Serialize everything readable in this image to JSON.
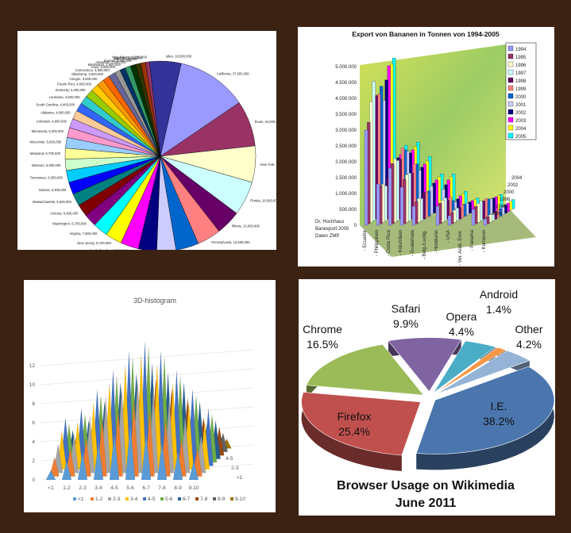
{
  "chart_data": [
    {
      "type": "pie",
      "title": "",
      "slices": [
        {
          "label": "California, 37,000,000",
          "value": 37000000,
          "color": "#9999ff"
        },
        {
          "label": "Texas, 24,000,000",
          "value": 24000000,
          "color": "#993366"
        },
        {
          "label": "New York, 19,000,000",
          "value": 19000000,
          "color": "#ffffcc"
        },
        {
          "label": "Florida, 18,000,000",
          "value": 18000000,
          "color": "#ccffff"
        },
        {
          "label": "Illinois, 13,000,000",
          "value": 13000000,
          "color": "#660066"
        },
        {
          "label": "Pennsylvania, 12,500,000",
          "value": 12500000,
          "color": "#ff8080"
        },
        {
          "label": "Ohio, 12,000,000",
          "value": 12000000,
          "color": "#0066cc"
        },
        {
          "label": "Michigan, 10,000,000",
          "value": 10000000,
          "color": "#ccccff"
        },
        {
          "label": "Georgia, 9,600,000",
          "value": 9600000,
          "color": "#000080"
        },
        {
          "label": "North Carolina, 9,500,000",
          "value": 9500000,
          "color": "#ff00ff"
        },
        {
          "label": "New Jersey, 8,700,000",
          "value": 8700000,
          "color": "#ffff00"
        },
        {
          "label": "Virginia, 7,800,000",
          "value": 7800000,
          "color": "#00ffff"
        },
        {
          "label": "Washington, 6,700,000",
          "value": 6700000,
          "color": "#800080"
        },
        {
          "label": "Arizona, 6,400,000",
          "value": 6400000,
          "color": "#800000"
        },
        {
          "label": "Massachusetts, 6,500,000",
          "value": 6500000,
          "color": "#008080"
        },
        {
          "label": "Indiana, 6,400,000",
          "value": 6400000,
          "color": "#0000ff"
        },
        {
          "label": "Tennessee, 6,300,000",
          "value": 6300000,
          "color": "#00ccff"
        },
        {
          "label": "Missouri, 5,900,000",
          "value": 5900000,
          "color": "#ccffcc"
        },
        {
          "label": "Maryland, 5,700,000",
          "value": 5700000,
          "color": "#ffff99"
        },
        {
          "label": "Wisconsin, 5,600,000",
          "value": 5600000,
          "color": "#99ccff"
        },
        {
          "label": "Minnesota, 5,200,000",
          "value": 5200000,
          "color": "#ff99cc"
        },
        {
          "label": "Colorado, 4,900,000",
          "value": 4900000,
          "color": "#cc99ff"
        },
        {
          "label": "Alabama, 4,600,000",
          "value": 4600000,
          "color": "#ffcc99"
        },
        {
          "label": "South Carolina, 4,400,000",
          "value": 4400000,
          "color": "#3366ff"
        },
        {
          "label": "Louisiana, 4,500,000",
          "value": 4500000,
          "color": "#33cccc"
        },
        {
          "label": "Kentucky, 4,300,000",
          "value": 4300000,
          "color": "#99cc00"
        },
        {
          "label": "Puerto Rico, 4,000,000",
          "value": 4000000,
          "color": "#ffcc00"
        },
        {
          "label": "Oregon, 3,800,000",
          "value": 3800000,
          "color": "#ff9900"
        },
        {
          "label": "Oklahoma, 3,600,000",
          "value": 3600000,
          "color": "#ff6600"
        },
        {
          "label": "Connecticut, 3,500,000",
          "value": 3500000,
          "color": "#666699"
        },
        {
          "label": "Iowa, 3,000,000",
          "value": 3000000,
          "color": "#969696"
        },
        {
          "label": "Mississippi, 2,900,000",
          "value": 2900000,
          "color": "#003366"
        },
        {
          "label": "Arkansas, 2,900,000",
          "value": 2900000,
          "color": "#339966"
        },
        {
          "label": "Kansas, 2,800,000",
          "value": 2800000,
          "color": "#003300"
        },
        {
          "label": "Utah, 2,700,000",
          "value": 2700000,
          "color": "#333300"
        },
        {
          "label": "Nevada, 2,600,000",
          "value": 2600000,
          "color": "#993300"
        },
        {
          "label": "New Mexico, 2,000,000",
          "value": 2000000,
          "color": "#993366"
        },
        {
          "label": "other, 16,500,000",
          "value": 16500000,
          "color": "#333399"
        }
      ]
    },
    {
      "type": "bar",
      "title": "Export von Bananen in Tonnen von 1994-2005",
      "categories": [
        "- Ecuador",
        "- Philippinen",
        "- Costa Rica",
        "- Kolumbien",
        "- Guatemala",
        "- Belg./Luxbg.",
        "- Honduras",
        "- USA",
        "- Ver. Arab. Emir.",
        "- Panama",
        "- Kamerun"
      ],
      "yticks": [
        "0",
        "500.000",
        "1.000.000",
        "1.500.000",
        "2.000.000",
        "2.500.000",
        "3.000.000",
        "3.500.000",
        "4.000.000",
        "4.500.000",
        "5.000.000"
      ],
      "ylim": [
        0,
        5000000
      ],
      "depth_labels": [
        "1994",
        "1996",
        "1998",
        "2000",
        "2002",
        "2004"
      ],
      "series": [
        {
          "name": "1994",
          "color": "#9999ff",
          "values": [
            3000000,
            1300000,
            1800000,
            1200000,
            600000,
            0,
            600000,
            300000,
            0,
            500000,
            200000
          ]
        },
        {
          "name": "1995",
          "color": "#993366",
          "values": [
            3200000,
            1200000,
            1900000,
            1400000,
            700000,
            0,
            650000,
            350000,
            0,
            550000,
            220000
          ]
        },
        {
          "name": "1996",
          "color": "#ffffcc",
          "values": [
            3800000,
            1200000,
            2000000,
            1500000,
            750000,
            0,
            700000,
            380000,
            0,
            600000,
            240000
          ]
        },
        {
          "name": "1997",
          "color": "#ccffff",
          "values": [
            4400000,
            1100000,
            1900000,
            1500000,
            700000,
            0,
            720000,
            400000,
            0,
            620000,
            230000
          ]
        },
        {
          "name": "1998",
          "color": "#660066",
          "values": [
            3900000,
            1300000,
            1900000,
            1450000,
            850000,
            0,
            600000,
            380000,
            0,
            580000,
            250000
          ]
        },
        {
          "name": "1999",
          "color": "#ff8080",
          "values": [
            3900000,
            1500000,
            2200000,
            1700000,
            800000,
            0,
            650000,
            400000,
            0,
            600000,
            260000
          ]
        },
        {
          "name": "2000",
          "color": "#0066cc",
          "values": [
            4100000,
            1600000,
            2100000,
            1650000,
            800000,
            400000,
            500000,
            380000,
            0,
            550000,
            240000
          ]
        },
        {
          "name": "2001",
          "color": "#ccccff",
          "values": [
            3600000,
            1700000,
            2000000,
            1400000,
            900000,
            800000,
            400000,
            360000,
            150000,
            500000,
            250000
          ]
        },
        {
          "name": "2002",
          "color": "#000080",
          "values": [
            4200000,
            1750000,
            1900000,
            1450000,
            950000,
            900000,
            450000,
            350000,
            200000,
            480000,
            260000
          ]
        },
        {
          "name": "2003",
          "color": "#ff00ff",
          "values": [
            4600000,
            1800000,
            1950000,
            1500000,
            1000000,
            1000000,
            500000,
            350000,
            220000,
            470000,
            270000
          ]
        },
        {
          "name": "2004",
          "color": "#ffff00",
          "values": [
            4600000,
            1900000,
            2000000,
            1550000,
            1050000,
            1050000,
            520000,
            340000,
            230000,
            460000,
            280000
          ]
        },
        {
          "name": "2005",
          "color": "#00ffff",
          "values": [
            4750000,
            2000000,
            2100000,
            1650000,
            1100000,
            1100000,
            550000,
            340000,
            250000,
            450000,
            290000
          ]
        }
      ],
      "annotation": [
        "Dr. Hochhaus",
        "Banexport 2005",
        "Daten ZMP"
      ]
    },
    {
      "type": "bar",
      "title": "3D-histogram",
      "categories": [
        "<1",
        "1-2",
        "2-3",
        "3-4",
        "4-5",
        "5-6",
        "6-7",
        "7-8",
        "8-9",
        "9-10"
      ],
      "yticks": [
        "0",
        "2",
        "4",
        "6",
        "8",
        "10",
        "12"
      ],
      "ylim": [
        0,
        14
      ],
      "depth_labels": [
        "<1",
        "2-3",
        "4-5",
        "6-7",
        "8-9"
      ],
      "series": [
        {
          "name": "<1",
          "color": "#5b9bd5",
          "values": [
            1,
            2,
            3,
            4,
            5,
            6,
            5,
            4,
            3,
            2
          ]
        },
        {
          "name": "1-2",
          "color": "#ed7d31",
          "values": [
            2,
            3,
            4,
            6,
            7,
            8,
            7,
            6,
            4,
            3
          ]
        },
        {
          "name": "2-3",
          "color": "#a5a5a5",
          "values": [
            3,
            4,
            6,
            8,
            9,
            10,
            9,
            8,
            6,
            4
          ]
        },
        {
          "name": "3-4",
          "color": "#ffc000",
          "values": [
            4,
            5,
            7,
            9,
            11,
            12,
            11,
            9,
            7,
            5
          ]
        },
        {
          "name": "4-5",
          "color": "#4472c4",
          "values": [
            5,
            6,
            8,
            10,
            12,
            13,
            12,
            10,
            8,
            6
          ]
        },
        {
          "name": "5-6",
          "color": "#70ad47",
          "values": [
            4,
            5,
            7,
            9,
            11,
            12,
            11,
            9,
            7,
            5
          ]
        },
        {
          "name": "6-7",
          "color": "#255e91",
          "values": [
            3,
            4,
            6,
            8,
            9,
            10,
            9,
            8,
            6,
            4
          ]
        },
        {
          "name": "7-8",
          "color": "#9e480e",
          "values": [
            2,
            3,
            4,
            6,
            7,
            8,
            7,
            6,
            4,
            3
          ]
        },
        {
          "name": "8-9",
          "color": "#636363",
          "values": [
            1,
            2,
            3,
            4,
            5,
            6,
            5,
            4,
            3,
            2
          ]
        },
        {
          "name": "9-10",
          "color": "#997300",
          "values": [
            1,
            1,
            2,
            3,
            4,
            4,
            4,
            3,
            2,
            1
          ]
        }
      ]
    },
    {
      "type": "pie",
      "title": "Browser Usage on Wikimedia June 2011",
      "slices": [
        {
          "name": "I.E.",
          "value": 38.2,
          "label": "38.2%",
          "color": "#4a76ad"
        },
        {
          "name": "Firefox",
          "value": 25.4,
          "label": "25.4%",
          "color": "#c0504d"
        },
        {
          "name": "Chrome",
          "value": 16.5,
          "label": "16.5%",
          "color": "#9bbb59"
        },
        {
          "name": "Safari",
          "value": 9.9,
          "label": "9.9%",
          "color": "#8064a2"
        },
        {
          "name": "Opera",
          "value": 4.4,
          "label": "4.4%",
          "color": "#4bacc6"
        },
        {
          "name": "Android",
          "value": 1.4,
          "label": "1.4%",
          "color": "#f79646"
        },
        {
          "name": "Other",
          "value": 4.2,
          "label": "4.2%",
          "color": "#95b3d7"
        }
      ]
    }
  ]
}
